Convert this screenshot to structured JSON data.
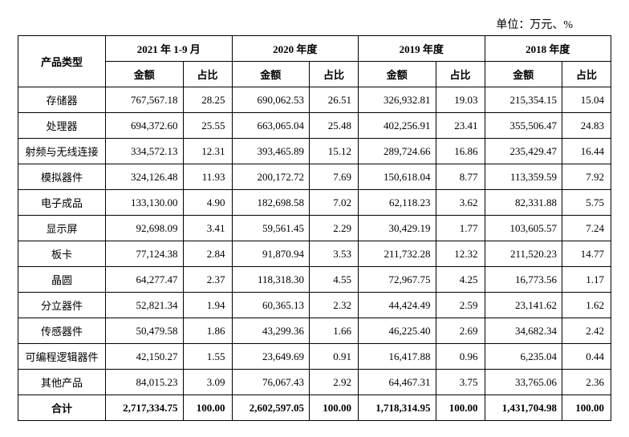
{
  "unit_label": "单位：万元、%",
  "header": {
    "product_type": "产品类型",
    "periods": [
      "2021 年 1-9 月",
      "2020 年度",
      "2019 年度",
      "2018 年度"
    ],
    "sub": {
      "amount": "金额",
      "pct": "占比"
    }
  },
  "rows": [
    {
      "name": "存储器",
      "v": [
        [
          "767,567.18",
          "28.25"
        ],
        [
          "690,062.53",
          "26.51"
        ],
        [
          "326,932.81",
          "19.03"
        ],
        [
          "215,354.15",
          "15.04"
        ]
      ]
    },
    {
      "name": "处理器",
      "v": [
        [
          "694,372.60",
          "25.55"
        ],
        [
          "663,065.04",
          "25.48"
        ],
        [
          "402,256.91",
          "23.41"
        ],
        [
          "355,506.47",
          "24.83"
        ]
      ]
    },
    {
      "name": "射频与无线连接",
      "v": [
        [
          "334,572.13",
          "12.31"
        ],
        [
          "393,465.89",
          "15.12"
        ],
        [
          "289,724.66",
          "16.86"
        ],
        [
          "235,429.47",
          "16.44"
        ]
      ]
    },
    {
      "name": "模拟器件",
      "v": [
        [
          "324,126.48",
          "11.93"
        ],
        [
          "200,172.72",
          "7.69"
        ],
        [
          "150,618.04",
          "8.77"
        ],
        [
          "113,359.59",
          "7.92"
        ]
      ]
    },
    {
      "name": "电子成品",
      "v": [
        [
          "133,130.00",
          "4.90"
        ],
        [
          "182,698.58",
          "7.02"
        ],
        [
          "62,118.23",
          "3.62"
        ],
        [
          "82,331.88",
          "5.75"
        ]
      ]
    },
    {
      "name": "显示屏",
      "v": [
        [
          "92,698.09",
          "3.41"
        ],
        [
          "59,561.45",
          "2.29"
        ],
        [
          "30,429.19",
          "1.77"
        ],
        [
          "103,605.57",
          "7.24"
        ]
      ]
    },
    {
      "name": "板卡",
      "v": [
        [
          "77,124.38",
          "2.84"
        ],
        [
          "91,870.94",
          "3.53"
        ],
        [
          "211,732.28",
          "12.32"
        ],
        [
          "211,520.23",
          "14.77"
        ]
      ]
    },
    {
      "name": "晶圆",
      "v": [
        [
          "64,277.47",
          "2.37"
        ],
        [
          "118,318.30",
          "4.55"
        ],
        [
          "72,967.75",
          "4.25"
        ],
        [
          "16,773.56",
          "1.17"
        ]
      ]
    },
    {
      "name": "分立器件",
      "v": [
        [
          "52,821.34",
          "1.94"
        ],
        [
          "60,365.13",
          "2.32"
        ],
        [
          "44,424.49",
          "2.59"
        ],
        [
          "23,141.62",
          "1.62"
        ]
      ]
    },
    {
      "name": "传感器件",
      "v": [
        [
          "50,479.58",
          "1.86"
        ],
        [
          "43,299.36",
          "1.66"
        ],
        [
          "46,225.40",
          "2.69"
        ],
        [
          "34,682.34",
          "2.42"
        ]
      ]
    },
    {
      "name": "可编程逻辑器件",
      "v": [
        [
          "42,150.27",
          "1.55"
        ],
        [
          "23,649.69",
          "0.91"
        ],
        [
          "16,417.88",
          "0.96"
        ],
        [
          "6,235.04",
          "0.44"
        ]
      ]
    },
    {
      "name": "其他产品",
      "v": [
        [
          "84,015.23",
          "3.09"
        ],
        [
          "76,067.43",
          "2.92"
        ],
        [
          "64,467.31",
          "3.75"
        ],
        [
          "33,765.06",
          "2.36"
        ]
      ]
    }
  ],
  "total": {
    "label": "合计",
    "v": [
      [
        "2,717,334.75",
        "100.00"
      ],
      [
        "2,602,597.05",
        "100.00"
      ],
      [
        "1,718,314.95",
        "100.00"
      ],
      [
        "1,431,704.98",
        "100.00"
      ]
    ]
  },
  "style": {
    "background_color": "#ffffff",
    "border_color": "#000000",
    "font_family": "SimSun",
    "body_fontsize": 13,
    "unit_fontsize": 14
  }
}
